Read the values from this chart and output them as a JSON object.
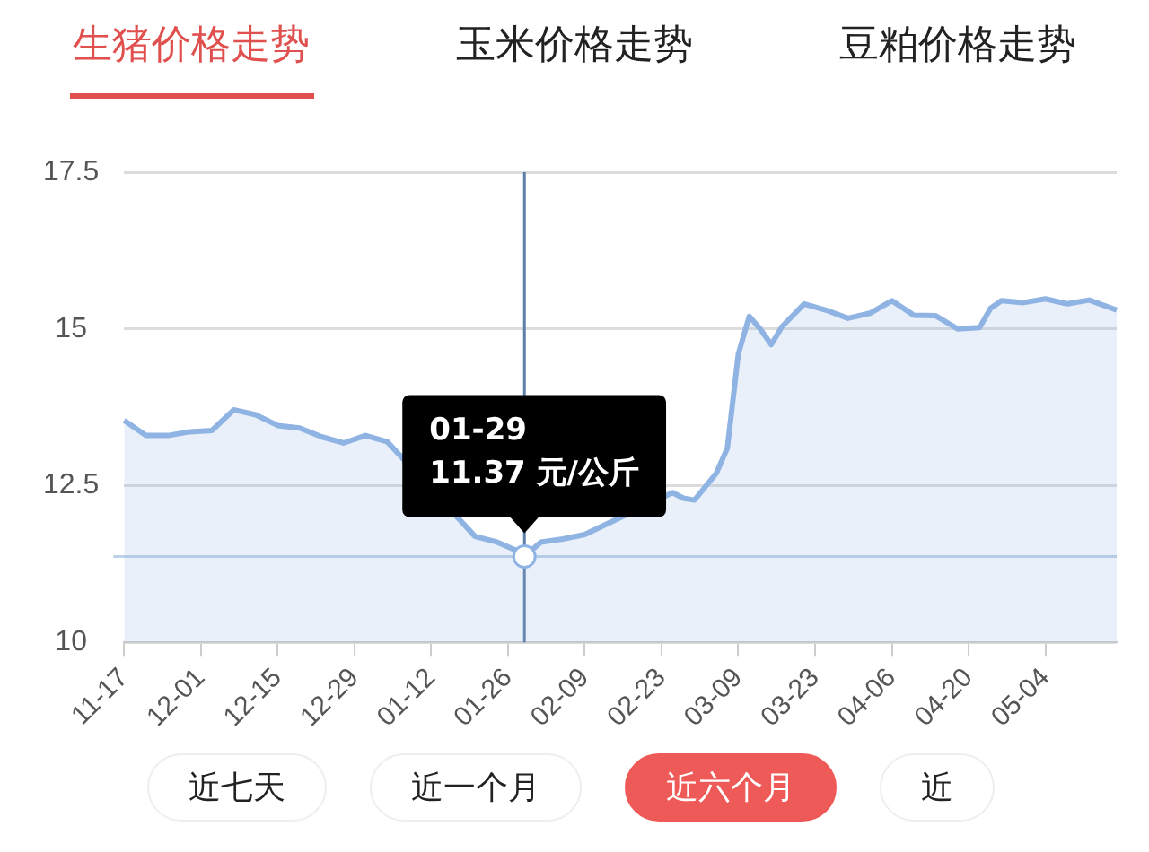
{
  "chart_data": {
    "type": "area",
    "title": "生猪价格走势",
    "categories": [
      "11-17",
      null,
      null,
      null,
      null,
      null,
      null,
      null,
      null,
      null,
      null,
      null,
      null,
      null,
      "12-01",
      null,
      null,
      null,
      null,
      null,
      null,
      null,
      null,
      null,
      null,
      null,
      null,
      null,
      "12-15",
      null,
      null,
      null,
      null,
      null,
      null,
      null,
      null,
      null,
      null,
      null,
      null,
      null,
      "12-29",
      null,
      null,
      null,
      null,
      null,
      null,
      null,
      null,
      null,
      null,
      null,
      null,
      null,
      "01-12",
      null,
      null,
      null,
      null,
      null,
      null,
      null,
      null,
      null,
      null,
      null,
      null,
      null,
      "01-26",
      null,
      null,
      null,
      null,
      null,
      null,
      null,
      null,
      null,
      null,
      null,
      null,
      null,
      "02-09",
      null,
      null,
      null,
      null,
      null,
      null,
      null,
      null,
      null,
      null,
      null,
      null,
      null,
      "02-23",
      null,
      null,
      null,
      null,
      null,
      null,
      null,
      null,
      null,
      null,
      null,
      null,
      null,
      "03-09",
      null,
      null,
      null,
      null,
      null,
      null,
      null,
      null,
      null,
      null,
      null,
      null,
      null,
      "03-23",
      null,
      null,
      null,
      null,
      null,
      null,
      null,
      null,
      null,
      null,
      null,
      null,
      null,
      "04-06",
      null,
      null,
      null,
      null,
      null,
      null,
      null,
      null,
      null,
      null,
      null,
      null,
      null,
      "04-20",
      null,
      null,
      null,
      null,
      null,
      null,
      null,
      null,
      null,
      null,
      null,
      null,
      null,
      "05-04",
      null,
      null,
      null,
      null,
      null,
      null,
      null,
      null,
      null,
      null,
      null,
      null,
      null
    ],
    "series": [
      {
        "color": "#8fb4e3",
        "values": [
          13.54,
          null,
          null,
          null,
          13.3,
          null,
          null,
          null,
          13.3,
          null,
          null,
          null,
          13.36,
          null,
          null,
          null,
          13.38,
          null,
          null,
          null,
          13.71,
          null,
          null,
          null,
          13.63,
          null,
          null,
          null,
          13.46,
          null,
          null,
          null,
          13.42,
          null,
          null,
          null,
          13.28,
          null,
          null,
          null,
          13.18,
          null,
          null,
          null,
          13.3,
          null,
          null,
          null,
          13.2,
          null,
          null,
          null,
          null,
          null,
          null,
          null,
          null,
          null,
          null,
          null,
          null,
          null,
          null,
          null,
          11.69,
          null,
          null,
          null,
          11.6,
          null,
          null,
          null,
          11.45,
          11.37,
          null,
          null,
          11.6,
          null,
          null,
          null,
          11.65,
          null,
          null,
          null,
          11.72,
          null,
          null,
          null,
          null,
          null,
          null,
          null,
          null,
          null,
          null,
          null,
          null,
          null,
          null,
          null,
          12.39,
          null,
          12.3,
          null,
          12.27,
          null,
          null,
          null,
          12.7,
          null,
          13.1,
          null,
          14.6,
          null,
          15.2,
          null,
          15.0,
          null,
          14.75,
          null,
          15.04,
          null,
          null,
          null,
          15.4,
          null,
          null,
          null,
          15.3,
          null,
          null,
          null,
          15.17,
          null,
          null,
          null,
          15.25,
          null,
          null,
          null,
          15.45,
          null,
          null,
          null,
          15.22,
          null,
          null,
          null,
          15.21,
          null,
          null,
          null,
          15.0,
          null,
          null,
          null,
          15.02,
          null,
          15.33,
          null,
          15.45,
          null,
          null,
          null,
          15.42,
          null,
          null,
          null,
          15.48,
          null,
          null,
          null,
          15.4,
          null,
          null,
          null,
          15.46,
          null,
          null,
          null,
          null,
          15.3
        ]
      }
    ],
    "ylim": [
      10,
      17.5
    ],
    "yticks": [
      10,
      12.5,
      15,
      17.5
    ],
    "grid": "y",
    "legend": false,
    "marker": "none",
    "ref_lines": [
      {
        "axis": "y",
        "value": 11.37,
        "color": "#bcd3ea"
      }
    ],
    "annotations": [
      "玉米价格走势",
      "豆粕价格走势",
      "近七天",
      "近一个月",
      "近六个月",
      "近",
      {
        "text": "01-29\n11.37 元/公斤",
        "y": 11.37
      }
    ]
  }
}
